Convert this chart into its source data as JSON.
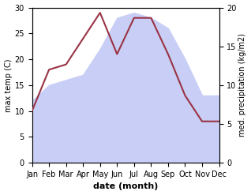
{
  "months": [
    "Jan",
    "Feb",
    "Mar",
    "Apr",
    "May",
    "Jun",
    "Jul",
    "Aug",
    "Sep",
    "Oct",
    "Nov",
    "Dec"
  ],
  "temp": [
    10,
    18,
    19,
    24,
    29,
    21,
    28,
    28,
    21,
    13,
    8,
    8
  ],
  "precip_left_scale": [
    12,
    15,
    16,
    17,
    22,
    28,
    29,
    28,
    26,
    20,
    13,
    13
  ],
  "temp_color": "#993344",
  "precip_fill_color": "#c8cef5",
  "precip_border_color": "#c8cef5",
  "ylim_left": [
    0,
    30
  ],
  "ylim_right": [
    0,
    20
  ],
  "yticks_left": [
    0,
    5,
    10,
    15,
    20,
    25,
    30
  ],
  "yticks_right": [
    0,
    5,
    10,
    15,
    20
  ],
  "xlabel": "date (month)",
  "ylabel_left": "max temp (C)",
  "ylabel_right": "med. precipitation (kg/m2)",
  "linewidth": 1.5,
  "font_size": 7,
  "xlabel_fontsize": 8
}
